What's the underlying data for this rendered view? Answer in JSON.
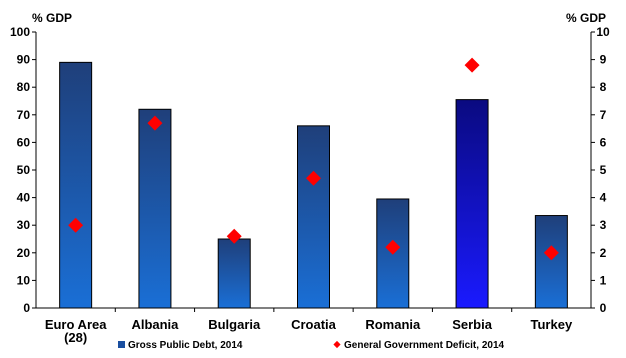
{
  "chart_data": {
    "type": "bar",
    "left_unit": "% GDP",
    "right_unit": "% GDP",
    "categories": [
      [
        "Euro Area",
        "(28)"
      ],
      [
        "Albania"
      ],
      [
        "Bulgaria"
      ],
      [
        "Croatia"
      ],
      [
        "Romania"
      ],
      [
        "Serbia"
      ],
      [
        "Turkey"
      ]
    ],
    "left_axis": {
      "ylim": [
        0,
        100
      ],
      "ticks": [
        "0",
        "10",
        "20",
        "30",
        "40",
        "50",
        "60",
        "70",
        "80",
        "90",
        "100"
      ]
    },
    "right_axis": {
      "ylim": [
        0,
        10
      ],
      "ticks": [
        "0",
        "1",
        "2",
        "3",
        "4",
        "5",
        "6",
        "7",
        "8",
        "9",
        "10"
      ]
    },
    "series": [
      {
        "name": "Gross Public Debt, 2014",
        "kind": "bar",
        "axis": "left",
        "values": [
          89,
          72,
          25,
          66,
          39.5,
          75.5,
          33.5
        ],
        "color": "#1a5db5",
        "highlight_index": 5,
        "highlight_color": "#1010e0"
      },
      {
        "name": "General Government Deficit, 2014",
        "kind": "marker",
        "axis": "right",
        "marker": "diamond",
        "color": "#ff0000",
        "values": [
          3.0,
          6.7,
          2.6,
          4.7,
          2.2,
          8.8,
          2.0
        ]
      }
    ],
    "grid": false,
    "legend_position": "bottom"
  }
}
